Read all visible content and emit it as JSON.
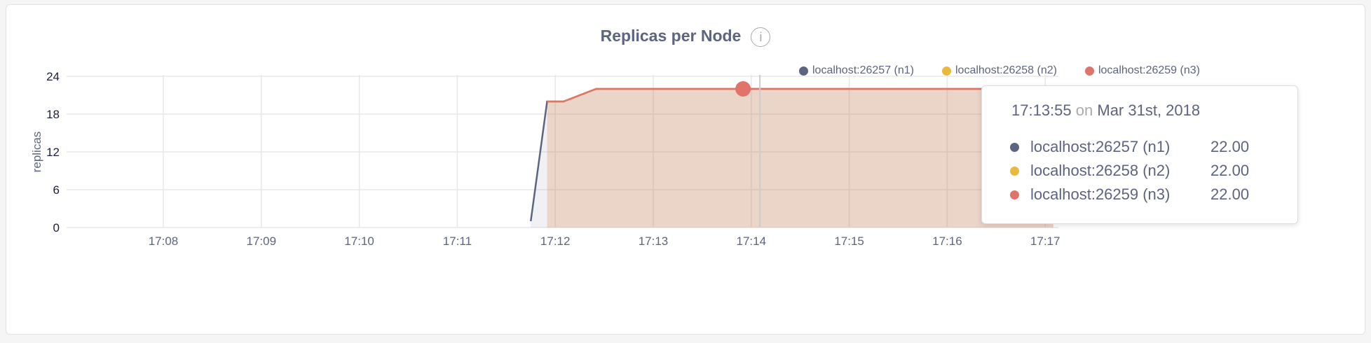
{
  "chart_data": {
    "type": "area",
    "title": "Replicas per Node",
    "ylabel": "replicas",
    "xlabel": "",
    "ylim": [
      0,
      24
    ],
    "yticks": [
      "0",
      "6",
      "12",
      "18",
      "24"
    ],
    "xlim": [
      "17:07:21",
      "17:17:15"
    ],
    "xticks": [
      "17:08",
      "17:09",
      "17:10",
      "17:11",
      "17:12",
      "17:13",
      "17:14",
      "17:15",
      "17:16",
      "17:17"
    ],
    "grid": true,
    "legend_position": "top-right",
    "series": [
      {
        "name": "localhost:26257 (n1)",
        "color": "#5c6480",
        "points": [
          [
            "17:11:45",
            1
          ],
          [
            "17:11:55",
            20
          ],
          [
            "17:12:05",
            20
          ],
          [
            "17:12:25",
            22
          ],
          [
            "17:17:05",
            22
          ]
        ]
      },
      {
        "name": "localhost:26258 (n2)",
        "color": "#e8b93d",
        "points": [
          [
            "17:11:55",
            20
          ],
          [
            "17:12:05",
            20
          ],
          [
            "17:12:25",
            22
          ],
          [
            "17:17:05",
            22
          ]
        ]
      },
      {
        "name": "localhost:26259 (n3)",
        "color": "#e0736a",
        "points": [
          [
            "17:11:55",
            20
          ],
          [
            "17:12:05",
            20
          ],
          [
            "17:12:25",
            22
          ],
          [
            "17:17:05",
            22
          ]
        ]
      }
    ],
    "hover": {
      "time": "17:13:55",
      "date": "Mar 31st, 2018",
      "on_label": "on",
      "values": [
        "22.00",
        "22.00",
        "22.00"
      ]
    }
  }
}
